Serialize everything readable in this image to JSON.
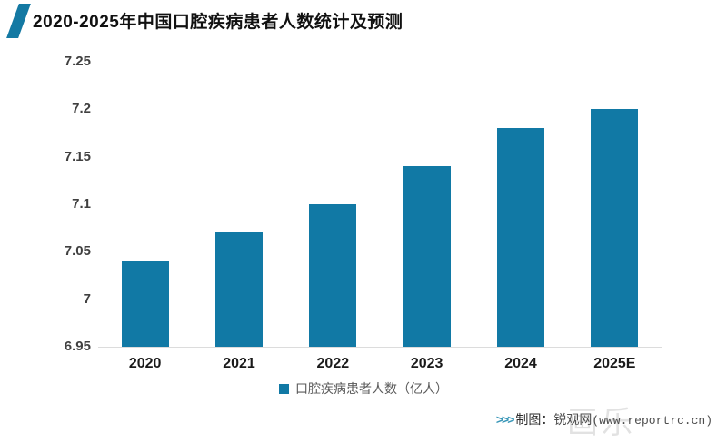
{
  "title": "2020-2025年中国口腔疾病患者人数统计及预测",
  "chart_data": {
    "type": "bar",
    "categories": [
      "2020",
      "2021",
      "2022",
      "2023",
      "2024",
      "2025E"
    ],
    "values": [
      7.04,
      7.07,
      7.1,
      7.14,
      7.18,
      7.2
    ],
    "series_name": "口腔疾病患者人数（亿人）",
    "title": "2020-2025年中国口腔疾病患者人数统计及预测",
    "xlabel": "",
    "ylabel": "",
    "ylim": [
      6.95,
      7.25
    ],
    "yticks": [
      "6.95",
      "7",
      "7.05",
      "7.1",
      "7.15",
      "7.2",
      "7.25"
    ],
    "grid": false,
    "legend_position": "bottom",
    "bar_color": "#1179A5"
  },
  "legend": {
    "label": "口腔疾病患者人数（亿人）"
  },
  "footer": {
    "arrows": ">>>",
    "credit_label": "制图：",
    "credit_source": "锐观网",
    "credit_url": "(www.reportrc.cn)",
    "watermark": "画乐"
  },
  "colors": {
    "accent": "#1179A5",
    "axis_line": "#dcdcdc",
    "tick_text": "#404040",
    "legend_text": "#595959"
  }
}
